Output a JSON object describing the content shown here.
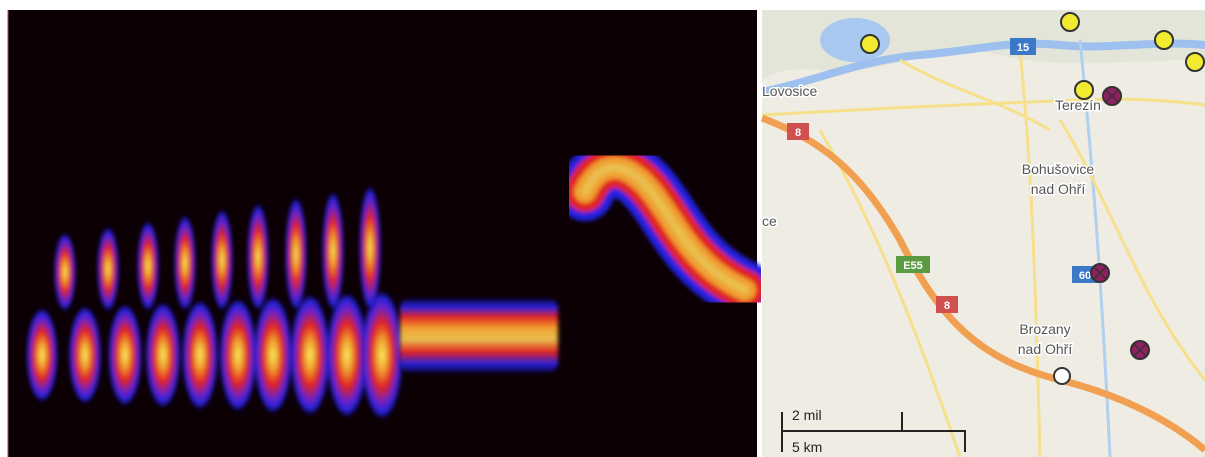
{
  "map": {
    "places": [
      {
        "lines": [
          "Lovosice"
        ]
      },
      {
        "lines": [
          "Terezín"
        ]
      },
      {
        "lines": [
          "Bohušovice",
          "nad Ohří"
        ]
      },
      {
        "lines": [
          "Brozany",
          "nad Ohří"
        ]
      },
      {
        "lines": [
          "ce"
        ]
      }
    ],
    "roads": [
      "15",
      "8",
      "E55",
      "8",
      "60"
    ],
    "scale": {
      "miles": "2 mil",
      "km": "5 km"
    }
  }
}
